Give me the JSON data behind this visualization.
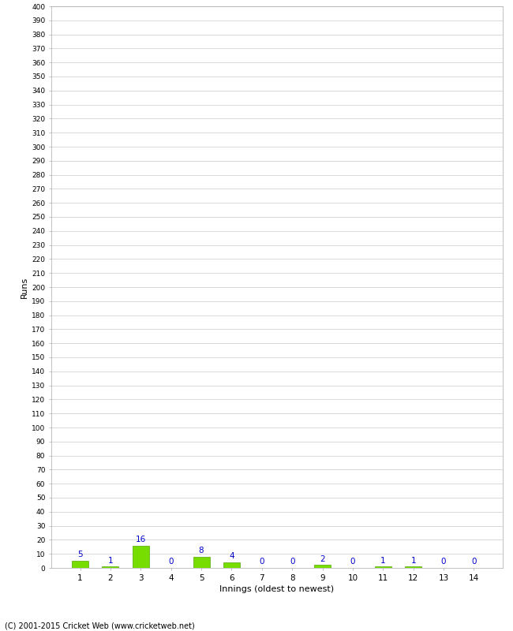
{
  "xlabel": "Innings (oldest to newest)",
  "ylabel": "Runs",
  "categories": [
    1,
    2,
    3,
    4,
    5,
    6,
    7,
    8,
    9,
    10,
    11,
    12,
    13,
    14
  ],
  "values": [
    5,
    1,
    16,
    0,
    8,
    4,
    0,
    0,
    2,
    0,
    1,
    1,
    0,
    0
  ],
  "bar_color": "#77dd00",
  "bar_edge_color": "#55aa00",
  "label_color": "#0000cc",
  "ylim": [
    0,
    400
  ],
  "ytick_step": 10,
  "background_color": "#ffffff",
  "grid_color": "#cccccc",
  "footer": "(C) 2001-2015 Cricket Web (www.cricketweb.net)"
}
